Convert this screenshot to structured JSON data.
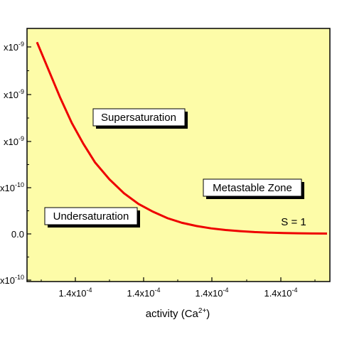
{
  "chart_data": {
    "type": "line",
    "xlabel": "activity (Ca",
    "xlabel_sup": "2+",
    "xlabel_close": ")",
    "ylabel": "",
    "x_tick_labels": [
      "1.4x10",
      "1.4x10",
      "1.4x10",
      "1.4x10"
    ],
    "x_tick_exp": "-4",
    "y_tick_labels": [
      {
        "base": "x10",
        "exp": "-9"
      },
      {
        "base": "x10",
        "exp": "-9"
      },
      {
        "base": "x10",
        "exp": "-9"
      },
      {
        "base": "x10",
        "exp": "-10"
      },
      {
        "base": "0.0",
        "exp": ""
      },
      {
        "base": "x10",
        "exp": "-10"
      }
    ],
    "series": [
      {
        "color": "#ee0000",
        "x": [
          0.0,
          0.04,
          0.08,
          0.12,
          0.16,
          0.2,
          0.25,
          0.3,
          0.35,
          0.4,
          0.45,
          0.5,
          0.55,
          0.6,
          0.65,
          0.7,
          0.75,
          0.8,
          0.85,
          0.9,
          0.95,
          1.0
        ],
        "y": [
          4.15,
          3.55,
          2.95,
          2.4,
          1.95,
          1.55,
          1.18,
          0.88,
          0.65,
          0.48,
          0.34,
          0.24,
          0.17,
          0.12,
          0.085,
          0.06,
          0.04,
          0.028,
          0.02,
          0.014,
          0.01,
          0.008
        ]
      }
    ],
    "annotations": [
      {
        "text": "Supersaturation",
        "boxed": true
      },
      {
        "text": "Metastable Zone",
        "boxed": true
      },
      {
        "text": "Undersaturation",
        "boxed": true
      },
      {
        "text": "S = 1",
        "boxed": false
      }
    ],
    "plot_background": "#fdfca8",
    "grid": false
  }
}
